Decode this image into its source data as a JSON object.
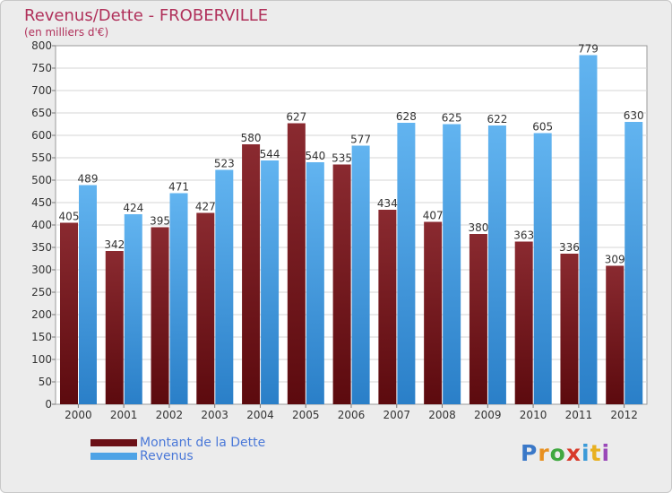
{
  "chart_data": {
    "type": "bar",
    "title": "Revenus/Dette - FROBERVILLE",
    "subtitle": "(en milliers d'€)",
    "xlabel": "",
    "ylabel": "",
    "ylim": [
      0,
      800
    ],
    "yticks": [
      0,
      50,
      100,
      150,
      200,
      250,
      300,
      350,
      400,
      450,
      500,
      550,
      600,
      650,
      700,
      750,
      800
    ],
    "categories": [
      "2000",
      "2001",
      "2002",
      "2003",
      "2004",
      "2005",
      "2006",
      "2007",
      "2008",
      "2009",
      "2010",
      "2011",
      "2012"
    ],
    "series": [
      {
        "name": "Montant de la Dette",
        "color": "#6b1016",
        "values": [
          405,
          342,
          395,
          427,
          580,
          627,
          535,
          434,
          407,
          380,
          363,
          336,
          309
        ]
      },
      {
        "name": "Revenus",
        "color": "#4ea3e6",
        "values": [
          489,
          424,
          471,
          523,
          544,
          540,
          577,
          628,
          625,
          622,
          605,
          779,
          630
        ]
      }
    ],
    "grid": true,
    "legend_position": "bottom-left"
  },
  "logo": {
    "letters": [
      {
        "char": "P",
        "color": "#3a78c8"
      },
      {
        "char": "r",
        "color": "#e89020"
      },
      {
        "char": "o",
        "color": "#40a840"
      },
      {
        "char": "x",
        "color": "#d83a2a"
      },
      {
        "char": "i",
        "color": "#3a9ad8"
      },
      {
        "char": "t",
        "color": "#e8b020"
      },
      {
        "char": "i",
        "color": "#9a48b8"
      }
    ]
  }
}
